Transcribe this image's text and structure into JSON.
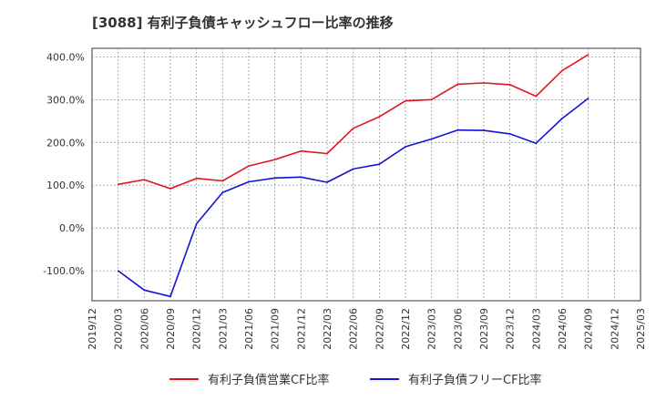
{
  "chart_data": {
    "type": "line",
    "title": "[3088]  有利子負債キャッシュフロー比率の推移",
    "xlabel": "",
    "ylabel": "",
    "ylim": [
      -170,
      420
    ],
    "y_ticks": [
      400,
      300,
      200,
      100,
      0,
      -100
    ],
    "y_tick_labels": [
      "400.0%",
      "300.0%",
      "200.0%",
      "100.0%",
      "0.0%",
      "-100.0%"
    ],
    "x_tick_labels": [
      "2019/12",
      "2020/03",
      "2020/06",
      "2020/09",
      "2020/12",
      "2021/03",
      "2021/06",
      "2021/09",
      "2021/12",
      "2022/03",
      "2022/06",
      "2022/09",
      "2022/12",
      "2023/03",
      "2023/06",
      "2023/09",
      "2023/12",
      "2024/03",
      "2024/06",
      "2024/09",
      "2024/12",
      "2025/03"
    ],
    "grid": true,
    "legend_position": "bottom",
    "series": [
      {
        "name": "有利子負債営業CF比率",
        "color": "#e0141e",
        "x": [
          "2020/03",
          "2020/06",
          "2020/09",
          "2020/12",
          "2021/03",
          "2021/06",
          "2021/09",
          "2021/12",
          "2022/03",
          "2022/06",
          "2022/09",
          "2022/12",
          "2023/03",
          "2023/06",
          "2023/09",
          "2023/12",
          "2024/03",
          "2024/06",
          "2024/09"
        ],
        "values": [
          102,
          113,
          92,
          116,
          110,
          145,
          160,
          180,
          174,
          233,
          260,
          297,
          300,
          336,
          339,
          335,
          308,
          368,
          405
        ]
      },
      {
        "name": "有利子負債フリーCF比率",
        "color": "#1414d2",
        "x": [
          "2020/03",
          "2020/06",
          "2020/09",
          "2020/12",
          "2021/03",
          "2021/06",
          "2021/09",
          "2021/12",
          "2022/03",
          "2022/06",
          "2022/09",
          "2022/12",
          "2023/03",
          "2023/06",
          "2023/09",
          "2023/12",
          "2024/03",
          "2024/06",
          "2024/09"
        ],
        "values": [
          -100,
          -145,
          -160,
          10,
          83,
          108,
          117,
          119,
          107,
          138,
          149,
          190,
          208,
          229,
          228,
          220,
          198,
          256,
          303
        ]
      }
    ]
  }
}
